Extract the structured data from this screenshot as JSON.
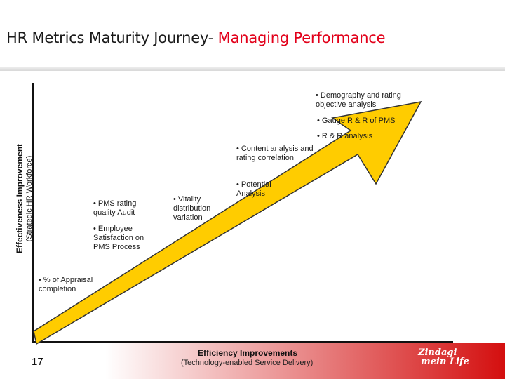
{
  "header": {
    "title_prefix": "HR Metrics Maturity Journey- ",
    "title_accent": "Managing Performance",
    "accent_color": "#e2001a"
  },
  "axes": {
    "y_label": "Effectiveness Improvement",
    "y_sublabel": "(Strategic HR Workforce)",
    "x_label": "Efficiency Improvements",
    "x_sublabel": "(Technology-enabled Service Delivery)"
  },
  "arrow": {
    "fill_color": "#ffcc00",
    "outline_color": "#333333"
  },
  "notes": [
    "• Demography and rating objective analysis",
    "• Gauge R & R of PMS",
    "• R & R analysis",
    "• Content analysis and rating correlation",
    "• Potential Analysis",
    "• Vitality distribution variation",
    "• PMS rating quality Audit",
    "• Employee Satisfaction on PMS Process",
    "• % of Appraisal completion"
  ],
  "footer": {
    "page_number": "17",
    "logo_line1": "Zindagi",
    "logo_line2": "mein Life"
  }
}
